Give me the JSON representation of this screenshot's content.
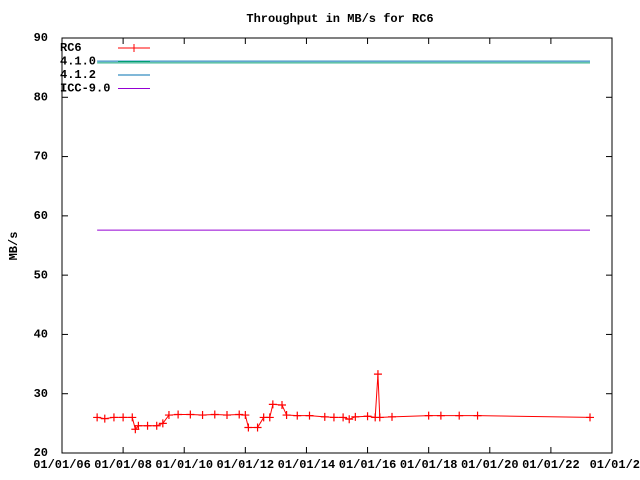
{
  "chart_data": {
    "type": "line",
    "title": "Throughput in MB/s for RC6",
    "y_label": "MB/s",
    "xlim": [
      2006,
      2024
    ],
    "xticks": [
      {
        "value": 2006,
        "label": "01/01/06"
      },
      {
        "value": 2008,
        "label": "01/01/08"
      },
      {
        "value": 2010,
        "label": "01/01/10"
      },
      {
        "value": 2012,
        "label": "01/01/12"
      },
      {
        "value": 2014,
        "label": "01/01/14"
      },
      {
        "value": 2016,
        "label": "01/01/16"
      },
      {
        "value": 2018,
        "label": "01/01/18"
      },
      {
        "value": 2020,
        "label": "01/01/20"
      },
      {
        "value": 2022,
        "label": "01/01/22"
      },
      {
        "value": 2024,
        "label": "01/01/2"
      }
    ],
    "ylim": [
      20,
      90
    ],
    "yticks": [
      20,
      30,
      40,
      50,
      60,
      70,
      80,
      90
    ],
    "series": [
      {
        "name": "RC6",
        "color": "#ff0000",
        "markers": true,
        "x": [
          2007.15,
          2007.4,
          2007.7,
          2008.0,
          2008.3,
          2008.4,
          2008.5,
          2008.8,
          2009.1,
          2009.3,
          2009.5,
          2009.8,
          2010.2,
          2010.6,
          2011.0,
          2011.4,
          2011.8,
          2012.0,
          2012.1,
          2012.4,
          2012.6,
          2012.8,
          2012.9,
          2013.2,
          2013.35,
          2013.7,
          2014.1,
          2014.6,
          2014.9,
          2015.2,
          2015.4,
          2015.6,
          2016.0,
          2016.25,
          2016.34,
          2016.4,
          2016.8,
          2018.0,
          2018.4,
          2019.0,
          2019.6,
          2023.28
        ],
        "values": [
          26,
          25.8,
          26,
          26,
          26,
          24,
          24.6,
          24.6,
          24.6,
          25,
          26.4,
          26.5,
          26.5,
          26.4,
          26.5,
          26.4,
          26.5,
          26.4,
          24.3,
          24.3,
          26,
          26,
          28.2,
          28.1,
          26.4,
          26.3,
          26.3,
          26.1,
          26,
          26,
          25.7,
          26.1,
          26.2,
          26,
          33.3,
          26,
          26.1,
          26.3,
          26.3,
          26.3,
          26.3,
          26
        ]
      },
      {
        "name": "4.1.0",
        "color": "#009e73",
        "markers": false,
        "x": [
          2007.15,
          2023.28
        ],
        "values": [
          85.8,
          85.8
        ]
      },
      {
        "name": "4.1.2",
        "color": "#0072b2",
        "markers": false,
        "x": [
          2007.15,
          2023.28
        ],
        "values": [
          86.1,
          86.1
        ]
      },
      {
        "name": "ICC-9.0",
        "color": "#9400d3",
        "markers": false,
        "x": [
          2007.15,
          2023.28
        ],
        "values": [
          57.6,
          57.6
        ]
      }
    ]
  }
}
